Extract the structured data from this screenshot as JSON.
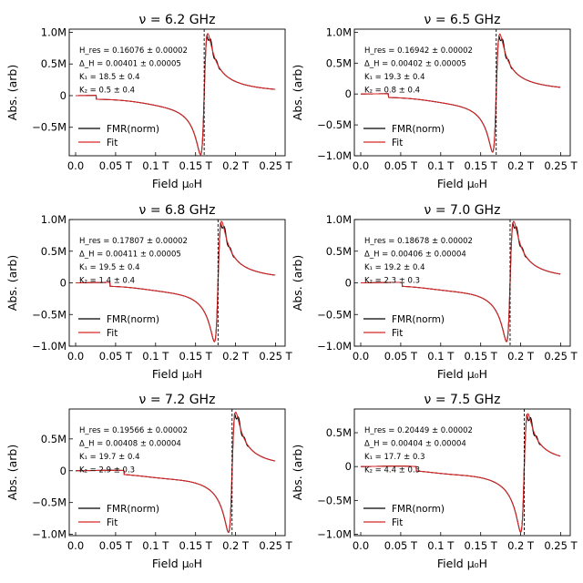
{
  "chart_data": [
    {
      "type": "line",
      "title": "ν = 6.2 GHz",
      "xlabel": "Field μ₀H",
      "ylabel": "Abs. (arb)",
      "xlim": [
        -0.008,
        0.262
      ],
      "ylim": [
        -0.95,
        1.05
      ],
      "xticks": [
        0,
        0.05,
        0.1,
        0.15,
        0.2,
        0.25
      ],
      "xtick_labels": [
        "0.0",
        "0.05 T",
        "0.1 T",
        "0.15 T",
        "0.2 T",
        "0.25 T"
      ],
      "yticks": [
        1.0,
        0.5,
        0,
        -0.5
      ],
      "ytick_labels": [
        "1.0M",
        "0.5M",
        "0",
        "−0.5M"
      ],
      "annotations": [
        "H_res = 0.16076 ± 0.00002",
        "Δ_H = 0.00401 ± 0.00005",
        "K₁ = 18.5 ± 0.4",
        "K₂ = 0.5 ± 0.4"
      ],
      "vline": 0.16076,
      "peak": 0.98,
      "trough": -0.93,
      "legend": [
        "FMR(norm)",
        "Fit"
      ],
      "legend_position": "lower-left",
      "series": [
        {
          "name": "FMR(norm)",
          "color": "#000000"
        },
        {
          "name": "Fit",
          "color": "#d62728"
        }
      ]
    },
    {
      "type": "line",
      "title": "ν = 6.5 GHz",
      "xlabel": "Field μ₀H",
      "ylabel": "Abs. (arb)",
      "xlim": [
        -0.008,
        0.262
      ],
      "ylim": [
        -1.0,
        1.05
      ],
      "xticks": [
        0,
        0.05,
        0.1,
        0.15,
        0.2,
        0.25
      ],
      "xtick_labels": [
        "0.0",
        "0.05 T",
        "0.1 T",
        "0.15 T",
        "0.2 T",
        "0.25 T"
      ],
      "yticks": [
        1.0,
        0.5,
        0,
        -0.5,
        -1.0
      ],
      "ytick_labels": [
        "1.0M",
        "0.5M",
        "0",
        "−0.5M",
        "−1.0M"
      ],
      "annotations": [
        "H_res = 0.16942 ± 0.00002",
        "Δ_H = 0.00402 ± 0.00005",
        "K₁ = 19.3 ± 0.4",
        "K₂ = 0.8 ± 0.4"
      ],
      "vline": 0.16942,
      "peak": 0.97,
      "trough": -0.94,
      "legend": [
        "FMR(norm)",
        "Fit"
      ],
      "legend_position": "lower-left",
      "series": [
        {
          "name": "FMR(norm)",
          "color": "#000000"
        },
        {
          "name": "Fit",
          "color": "#d62728"
        }
      ]
    },
    {
      "type": "line",
      "title": "ν = 6.8 GHz",
      "xlabel": "Field μ₀H",
      "ylabel": "Abs. (arb)",
      "xlim": [
        -0.008,
        0.262
      ],
      "ylim": [
        -1.0,
        1.0
      ],
      "xticks": [
        0,
        0.05,
        0.1,
        0.15,
        0.2,
        0.25
      ],
      "xtick_labels": [
        "0.0",
        "0.05 T",
        "0.1 T",
        "0.15 T",
        "0.2 T",
        "0.25 T"
      ],
      "yticks": [
        1.0,
        0.5,
        0,
        -0.5,
        -1.0
      ],
      "ytick_labels": [
        "1.0M",
        "0.5M",
        "0",
        "−0.5M",
        "−1.0M"
      ],
      "annotations": [
        "H_res = 0.17807 ± 0.00002",
        "Δ_H = 0.00411 ± 0.00005",
        "K₁ = 19.5 ± 0.4",
        "K₂ = 1.4 ± 0.4"
      ],
      "vline": 0.17807,
      "peak": 0.97,
      "trough": -0.93,
      "legend": [
        "FMR(norm)",
        "Fit"
      ],
      "legend_position": "lower-left",
      "series": [
        {
          "name": "FMR(norm)",
          "color": "#000000"
        },
        {
          "name": "Fit",
          "color": "#d62728"
        }
      ]
    },
    {
      "type": "line",
      "title": "ν = 7.0 GHz",
      "xlabel": "Field μ₀H",
      "ylabel": "Abs. (arb)",
      "xlim": [
        -0.008,
        0.262
      ],
      "ylim": [
        -1.0,
        1.0
      ],
      "xticks": [
        0,
        0.05,
        0.1,
        0.15,
        0.2,
        0.25
      ],
      "xtick_labels": [
        "0.0",
        "0.05 T",
        "0.1 T",
        "0.15 T",
        "0.2 T",
        "0.25 T"
      ],
      "yticks": [
        1.0,
        0.5,
        0,
        -0.5,
        -1.0
      ],
      "ytick_labels": [
        "1.0M",
        "0.5M",
        "0",
        "−0.5M",
        "−1.0M"
      ],
      "annotations": [
        "H_res = 0.18678 ± 0.00002",
        "Δ_H = 0.00406 ± 0.00004",
        "K₁ = 19.2 ± 0.4",
        "K₂ = 2.3 ± 0.3"
      ],
      "vline": 0.18678,
      "peak": 0.97,
      "trough": -0.93,
      "legend": [
        "FMR(norm)",
        "Fit"
      ],
      "legend_position": "lower-left",
      "series": [
        {
          "name": "FMR(norm)",
          "color": "#000000"
        },
        {
          "name": "Fit",
          "color": "#d62728"
        }
      ]
    },
    {
      "type": "line",
      "title": "ν = 7.2 GHz",
      "xlabel": "Field μ₀H",
      "ylabel": "Abs. (arb)",
      "xlim": [
        -0.008,
        0.262
      ],
      "ylim": [
        -1.02,
        0.97
      ],
      "xticks": [
        0,
        0.05,
        0.1,
        0.15,
        0.2,
        0.25
      ],
      "xtick_labels": [
        "0.0",
        "0.05 T",
        "0.1 T",
        "0.15 T",
        "0.2 T",
        "0.25 T"
      ],
      "yticks": [
        0.5,
        0,
        -0.5,
        -1.0
      ],
      "ytick_labels": [
        "0.5M",
        "0",
        "−0.5M",
        "−1.0M"
      ],
      "annotations": [
        "H_res = 0.19566 ± 0.00002",
        "Δ_H = 0.00408 ± 0.00004",
        "K₁ = 19.7 ± 0.4",
        "K₂ = 2.9 ± 0.3"
      ],
      "vline": 0.19566,
      "peak": 0.92,
      "trough": -0.97,
      "legend": [
        "FMR(norm)",
        "Fit"
      ],
      "legend_position": "lower-left",
      "series": [
        {
          "name": "FMR(norm)",
          "color": "#000000"
        },
        {
          "name": "Fit",
          "color": "#d62728"
        }
      ]
    },
    {
      "type": "line",
      "title": "ν = 7.5 GHz",
      "xlabel": "Field μ₀H",
      "ylabel": "Abs. (arb)",
      "xlim": [
        -0.008,
        0.262
      ],
      "ylim": [
        -1.02,
        0.85
      ],
      "xticks": [
        0,
        0.05,
        0.1,
        0.15,
        0.2,
        0.25
      ],
      "xtick_labels": [
        "0.0",
        "0.05 T",
        "0.1 T",
        "0.15 T",
        "0.2 T",
        "0.25 T"
      ],
      "yticks": [
        0.5,
        0,
        -0.5,
        -1.0
      ],
      "ytick_labels": [
        "0.5M",
        "0",
        "−0.5M",
        "−1.0M"
      ],
      "annotations": [
        "H_res = 0.20449 ± 0.00002",
        "Δ_H = 0.00404 ± 0.00004",
        "K₁ = 17.7 ± 0.3",
        "K₂ = 4.4 ± 0.3"
      ],
      "vline": 0.20449,
      "peak": 0.78,
      "trough": -0.97,
      "legend": [
        "FMR(norm)",
        "Fit"
      ],
      "legend_position": "lower-left",
      "series": [
        {
          "name": "FMR(norm)",
          "color": "#000000"
        },
        {
          "name": "Fit",
          "color": "#d62728"
        }
      ]
    }
  ]
}
